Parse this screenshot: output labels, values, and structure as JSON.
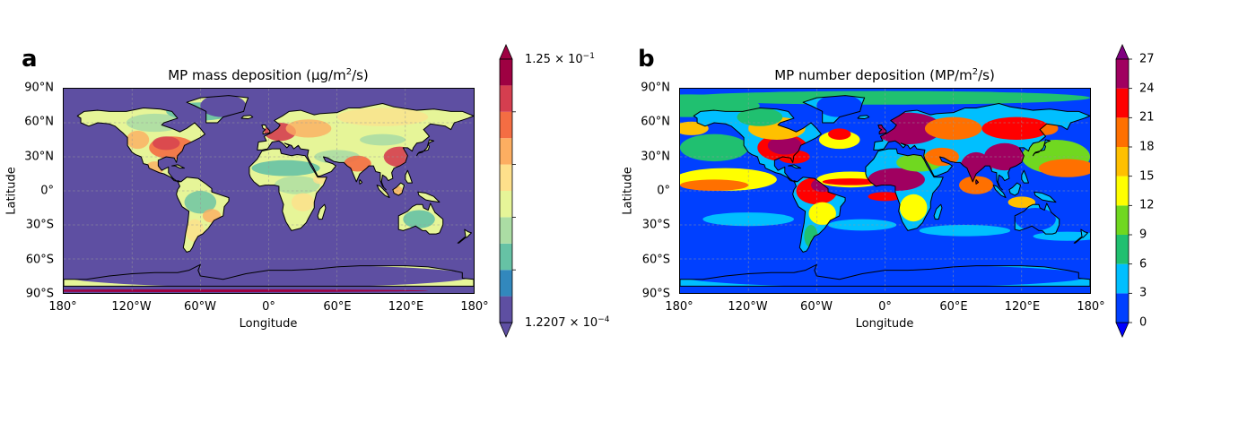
{
  "panel_a": {
    "letter": "a",
    "title_pre": "MP mass deposition (µg/m",
    "title_sup": "2",
    "title_post": "/s)",
    "xlabel": "Longitude",
    "ylabel": "Latitude",
    "xticks": [
      "180°",
      "120°W",
      "60°W",
      "0°",
      "60°E",
      "120°E",
      "180°"
    ],
    "yticks": [
      "90°N",
      "60°N",
      "30°N",
      "0°",
      "30°S",
      "60°S",
      "90°S"
    ],
    "colorbar": {
      "max_mantissa": "1.25 × 10",
      "max_exp": "−1",
      "min_mantissa": "1.2207 × 10",
      "min_exp": "−4",
      "colors": [
        "#5e4fa2",
        "#3288bd",
        "#66c2a5",
        "#abdda4",
        "#e6f598",
        "#fee08b",
        "#fdae61",
        "#f46d43",
        "#d53e4f",
        "#9e0142"
      ],
      "under_color": "#5e4fa2",
      "over_color": "#9e0142"
    },
    "ocean_color": "#5e4fa2"
  },
  "panel_b": {
    "letter": "b",
    "title_pre": "MP number deposition (MP/m",
    "title_sup": "2",
    "title_post": "/s)",
    "xlabel": "Longitude",
    "ylabel": "Latitude",
    "xticks": [
      "180°",
      "120°W",
      "60°W",
      "0°",
      "60°E",
      "120°E",
      "180°"
    ],
    "yticks": [
      "90°N",
      "60°N",
      "30°N",
      "0°",
      "30°S",
      "60°S",
      "90°S"
    ],
    "colorbar": {
      "levels": [
        "0",
        "3",
        "6",
        "9",
        "12",
        "15",
        "18",
        "21",
        "24",
        "27"
      ],
      "colors": [
        "#0040ff",
        "#00bfff",
        "#20c070",
        "#70d820",
        "#ffff00",
        "#ffc000",
        "#ff7000",
        "#ff0000",
        "#a00060"
      ],
      "under_color": "#0000ff",
      "over_color": "#800080"
    },
    "ocean_color": "#0040ff"
  }
}
